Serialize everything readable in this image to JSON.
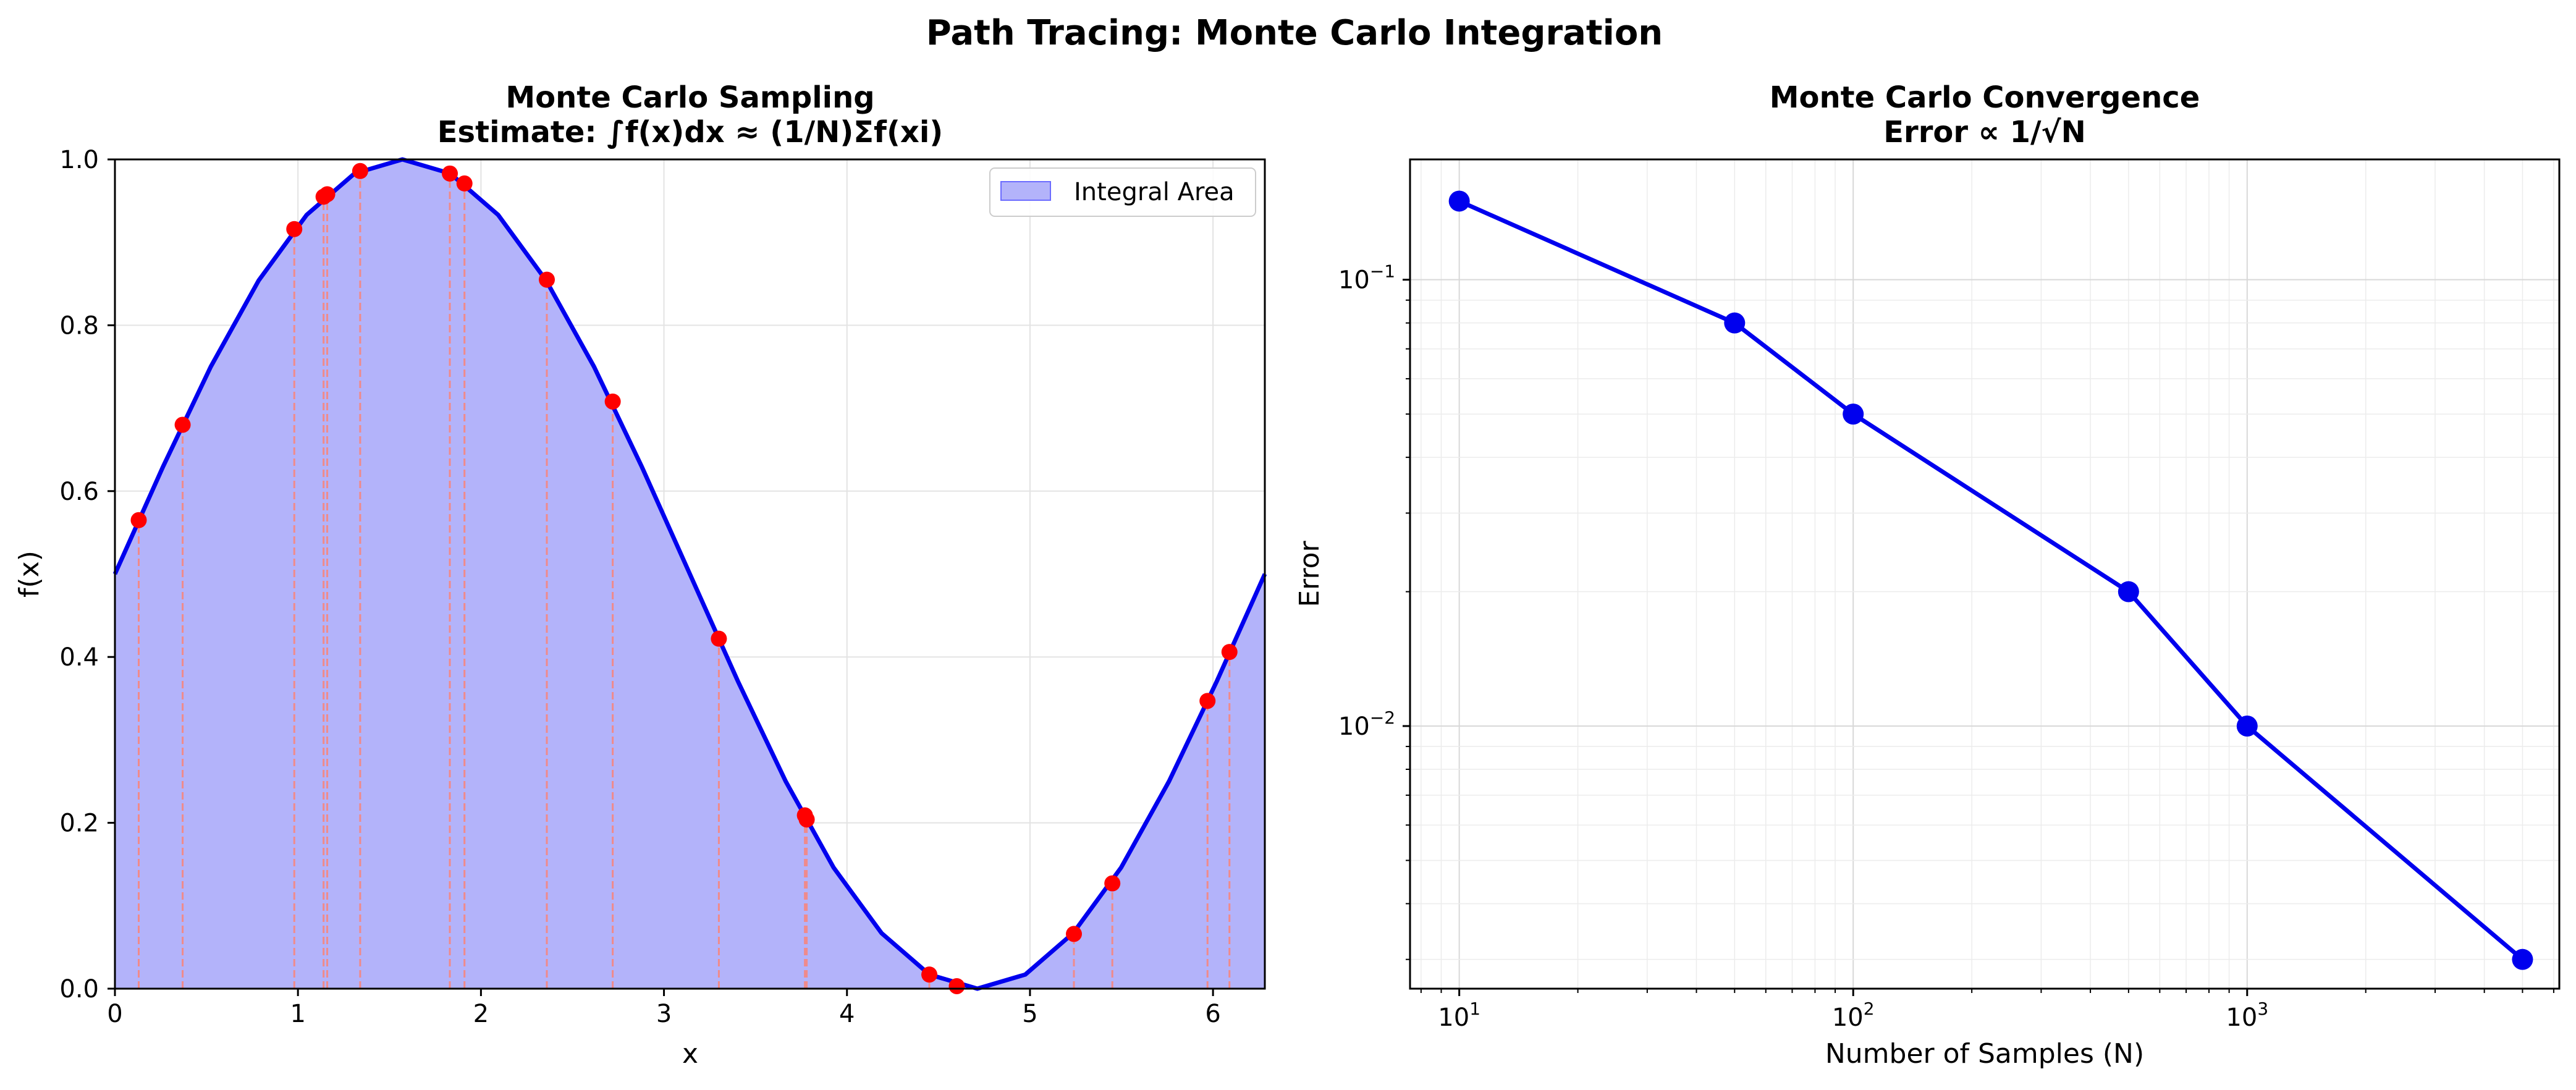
{
  "figure": {
    "title": "Path Tracing: Monte Carlo Integration"
  },
  "chart_data": [
    {
      "type": "area",
      "title_line1": "Monte Carlo Sampling",
      "title_line2": "Estimate: ∫f(x)dx ≈ (1/N)Σf(xi)",
      "xlabel": "x",
      "ylabel": "f(x)",
      "xlim": [
        0,
        6.2832
      ],
      "ylim": [
        0,
        1.0
      ],
      "xticks": [
        0,
        1,
        2,
        3,
        4,
        5,
        6
      ],
      "xtick_labels": [
        "0",
        "1",
        "2",
        "3",
        "4",
        "5",
        "6"
      ],
      "yticks": [
        0,
        0.2,
        0.4,
        0.6,
        0.8,
        1.0
      ],
      "ytick_labels": [
        "0.0",
        "0.2",
        "0.4",
        "0.6",
        "0.8",
        "1.0"
      ],
      "grid": true,
      "legend": {
        "position": "top-right",
        "entries": [
          "Integral Area"
        ]
      },
      "curve": {
        "x": [
          0,
          0.2618,
          0.5236,
          0.7854,
          1.0472,
          1.309,
          1.5708,
          1.8326,
          2.0944,
          2.3562,
          2.618,
          2.8798,
          3.1416,
          3.4034,
          3.6652,
          3.927,
          4.1888,
          4.4506,
          4.7124,
          4.9742,
          5.236,
          5.4978,
          5.7596,
          6.0214,
          6.2832
        ],
        "y": [
          0.5,
          0.629,
          0.75,
          0.854,
          0.933,
          0.983,
          1.0,
          0.983,
          0.933,
          0.854,
          0.75,
          0.629,
          0.5,
          0.371,
          0.25,
          0.146,
          0.067,
          0.017,
          0.0,
          0.017,
          0.067,
          0.146,
          0.25,
          0.371,
          0.5
        ]
      },
      "colors": {
        "curve": "#0000ee",
        "fill": "#b3b3fa",
        "fill_edge": "#6b6bff",
        "samples": "#ff0000",
        "sample_lines": "#f08a8a"
      },
      "samples": {
        "x": [
          0.13,
          0.37,
          0.98,
          1.14,
          1.16,
          1.34,
          1.83,
          1.91,
          2.36,
          2.72,
          3.3,
          3.77,
          3.78,
          4.45,
          4.6,
          5.24,
          5.45,
          5.97,
          6.09
        ],
        "y": [
          0.565,
          0.68,
          0.916,
          0.955,
          0.958,
          0.986,
          0.983,
          0.971,
          0.855,
          0.708,
          0.422,
          0.209,
          0.204,
          0.017,
          0.003,
          0.066,
          0.127,
          0.347,
          0.406
        ]
      }
    },
    {
      "type": "line",
      "title_line1": "Monte Carlo Convergence",
      "title_line2": "Error ∝ 1/√N",
      "xlabel": "Number of Samples (N)",
      "ylabel": "Error",
      "xscale": "log",
      "yscale": "log",
      "xlim": [
        7.5,
        6200
      ],
      "ylim": [
        0.00258,
        0.186
      ],
      "xticks_major": [
        10,
        100,
        1000
      ],
      "xtick_labels": [
        {
          "base": "10",
          "exp": "1"
        },
        {
          "base": "10",
          "exp": "2"
        },
        {
          "base": "10",
          "exp": "3"
        }
      ],
      "yticks_major": [
        0.01,
        0.1
      ],
      "ytick_labels": [
        {
          "base": "10",
          "exp": "−2"
        },
        {
          "base": "10",
          "exp": "−1"
        }
      ],
      "grid": true,
      "series": [
        {
          "x": [
            10,
            50,
            100,
            500,
            1000,
            5000
          ],
          "y": [
            0.15,
            0.08,
            0.05,
            0.02,
            0.01,
            0.003
          ]
        }
      ],
      "colors": {
        "line": "#0000ee"
      }
    }
  ]
}
